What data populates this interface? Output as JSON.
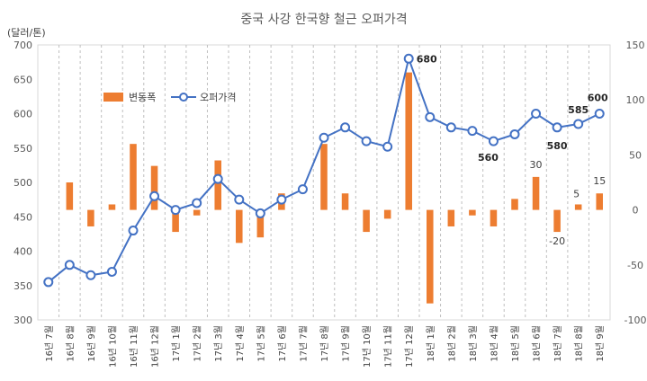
{
  "chart_data": {
    "type": "bar+line",
    "title": "중국 사강 한국향 철근 오퍼가격",
    "unit_label": "(달러/톤)",
    "categories": [
      "16년 7월",
      "16년 8월",
      "16년 9월",
      "16년 10월",
      "16년 11월",
      "16년 12월",
      "17년 1월",
      "17년 2월",
      "17년 3월",
      "17년 4월",
      "17년 5월",
      "17년 6월",
      "17년 7월",
      "17년 8월",
      "17년 9월",
      "17년 10월",
      "17년 11월",
      "17년 12월",
      "18년 1월",
      "18년 2월",
      "18년 3월",
      "18년 4월",
      "18년 5월",
      "18년 6월",
      "18년 7월",
      "18년 8월",
      "18년 9월"
    ],
    "series": [
      {
        "name": "변동폭",
        "type": "bar",
        "axis": "right",
        "color": "#ED7D31",
        "values": [
          0,
          25,
          -15,
          5,
          60,
          40,
          -20,
          -5,
          45,
          -30,
          -25,
          15,
          0,
          60,
          15,
          -20,
          -8,
          125,
          -85,
          -15,
          -5,
          -15,
          10,
          30,
          -20,
          5,
          15
        ],
        "labels_shown": {
          "23": "30",
          "24": "-20",
          "25": "5",
          "26": "15"
        }
      },
      {
        "name": "오퍼가격",
        "type": "line",
        "axis": "left",
        "color": "#4472C4",
        "values": [
          355,
          380,
          365,
          370,
          430,
          480,
          460,
          470,
          505,
          475,
          455,
          475,
          490,
          565,
          580,
          560,
          552,
          680,
          595,
          580,
          575,
          560,
          570,
          600,
          580,
          585,
          600
        ],
        "labels_shown": {
          "17": "680",
          "21": "560",
          "24": "580",
          "25": "585",
          "26": "600"
        }
      }
    ],
    "left_axis": {
      "ylim": [
        300,
        700
      ],
      "ticks": [
        "300",
        "350",
        "400",
        "450",
        "500",
        "550",
        "600",
        "650",
        "700"
      ]
    },
    "right_axis": {
      "ylim": [
        -100,
        150
      ],
      "ticks": [
        "-100",
        "-50",
        "0",
        "50",
        "100",
        "150"
      ]
    },
    "grid": "vertical dashed",
    "legend": "upper-left inside"
  }
}
